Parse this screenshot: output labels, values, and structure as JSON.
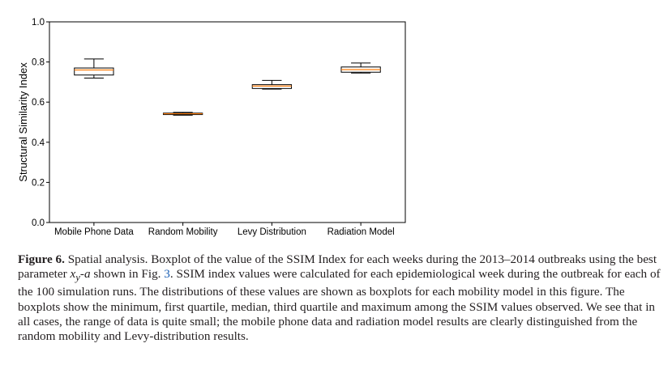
{
  "chart_data": {
    "type": "boxplot",
    "title": "",
    "xlabel": "",
    "ylabel": "Structural Similarity Index",
    "ylim": [
      0.0,
      1.0
    ],
    "yticks": [
      0.0,
      0.2,
      0.4,
      0.6,
      0.8,
      1.0
    ],
    "ytick_labels": [
      "0.0",
      "0.2",
      "0.4",
      "0.6",
      "0.8",
      "1.0"
    ],
    "grid": false,
    "legend": "none",
    "categories": [
      "Mobile Phone Data",
      "Random Mobility",
      "Levy Distribution",
      "Radiation Model"
    ],
    "boxes": [
      {
        "name": "Mobile Phone Data",
        "min": 0.72,
        "q1": 0.735,
        "median": 0.76,
        "q3": 0.77,
        "max": 0.815
      },
      {
        "name": "Random Mobility",
        "min": 0.535,
        "q1": 0.538,
        "median": 0.542,
        "q3": 0.545,
        "max": 0.549
      },
      {
        "name": "Levy Distribution",
        "min": 0.665,
        "q1": 0.668,
        "median": 0.68,
        "q3": 0.687,
        "max": 0.708
      },
      {
        "name": "Radiation Model",
        "min": 0.745,
        "q1": 0.749,
        "median": 0.762,
        "q3": 0.775,
        "max": 0.795
      }
    ],
    "colors": {
      "box": "#000000",
      "median": "#ff7f0e"
    }
  },
  "caption": {
    "label": "Figure 6.",
    "text_before_math": "Spatial analysis. Boxplot of the value of the SSIM Index for each weeks during the 2013–2014 outbreaks using the best parameter",
    "math_base": "x",
    "math_sub": "y",
    "math_suffix": "-a",
    "text_shown_in": "shown in Fig.",
    "fig_ref": "3",
    "text_after_ref": ". SSIM index values were calculated for each epidemiological week during the outbreak for each of the 100 simulation runs. The distributions of these values are shown as boxplots for each mobility model in this figure. The boxplots show the minimum, first quartile, median, third quartile and maximum among the SSIM values observed. We see that in all cases, the range of data is quite small; the mobile phone data and radiation model results are clearly distinguished from the random mobility and Levy-distribution results."
  }
}
